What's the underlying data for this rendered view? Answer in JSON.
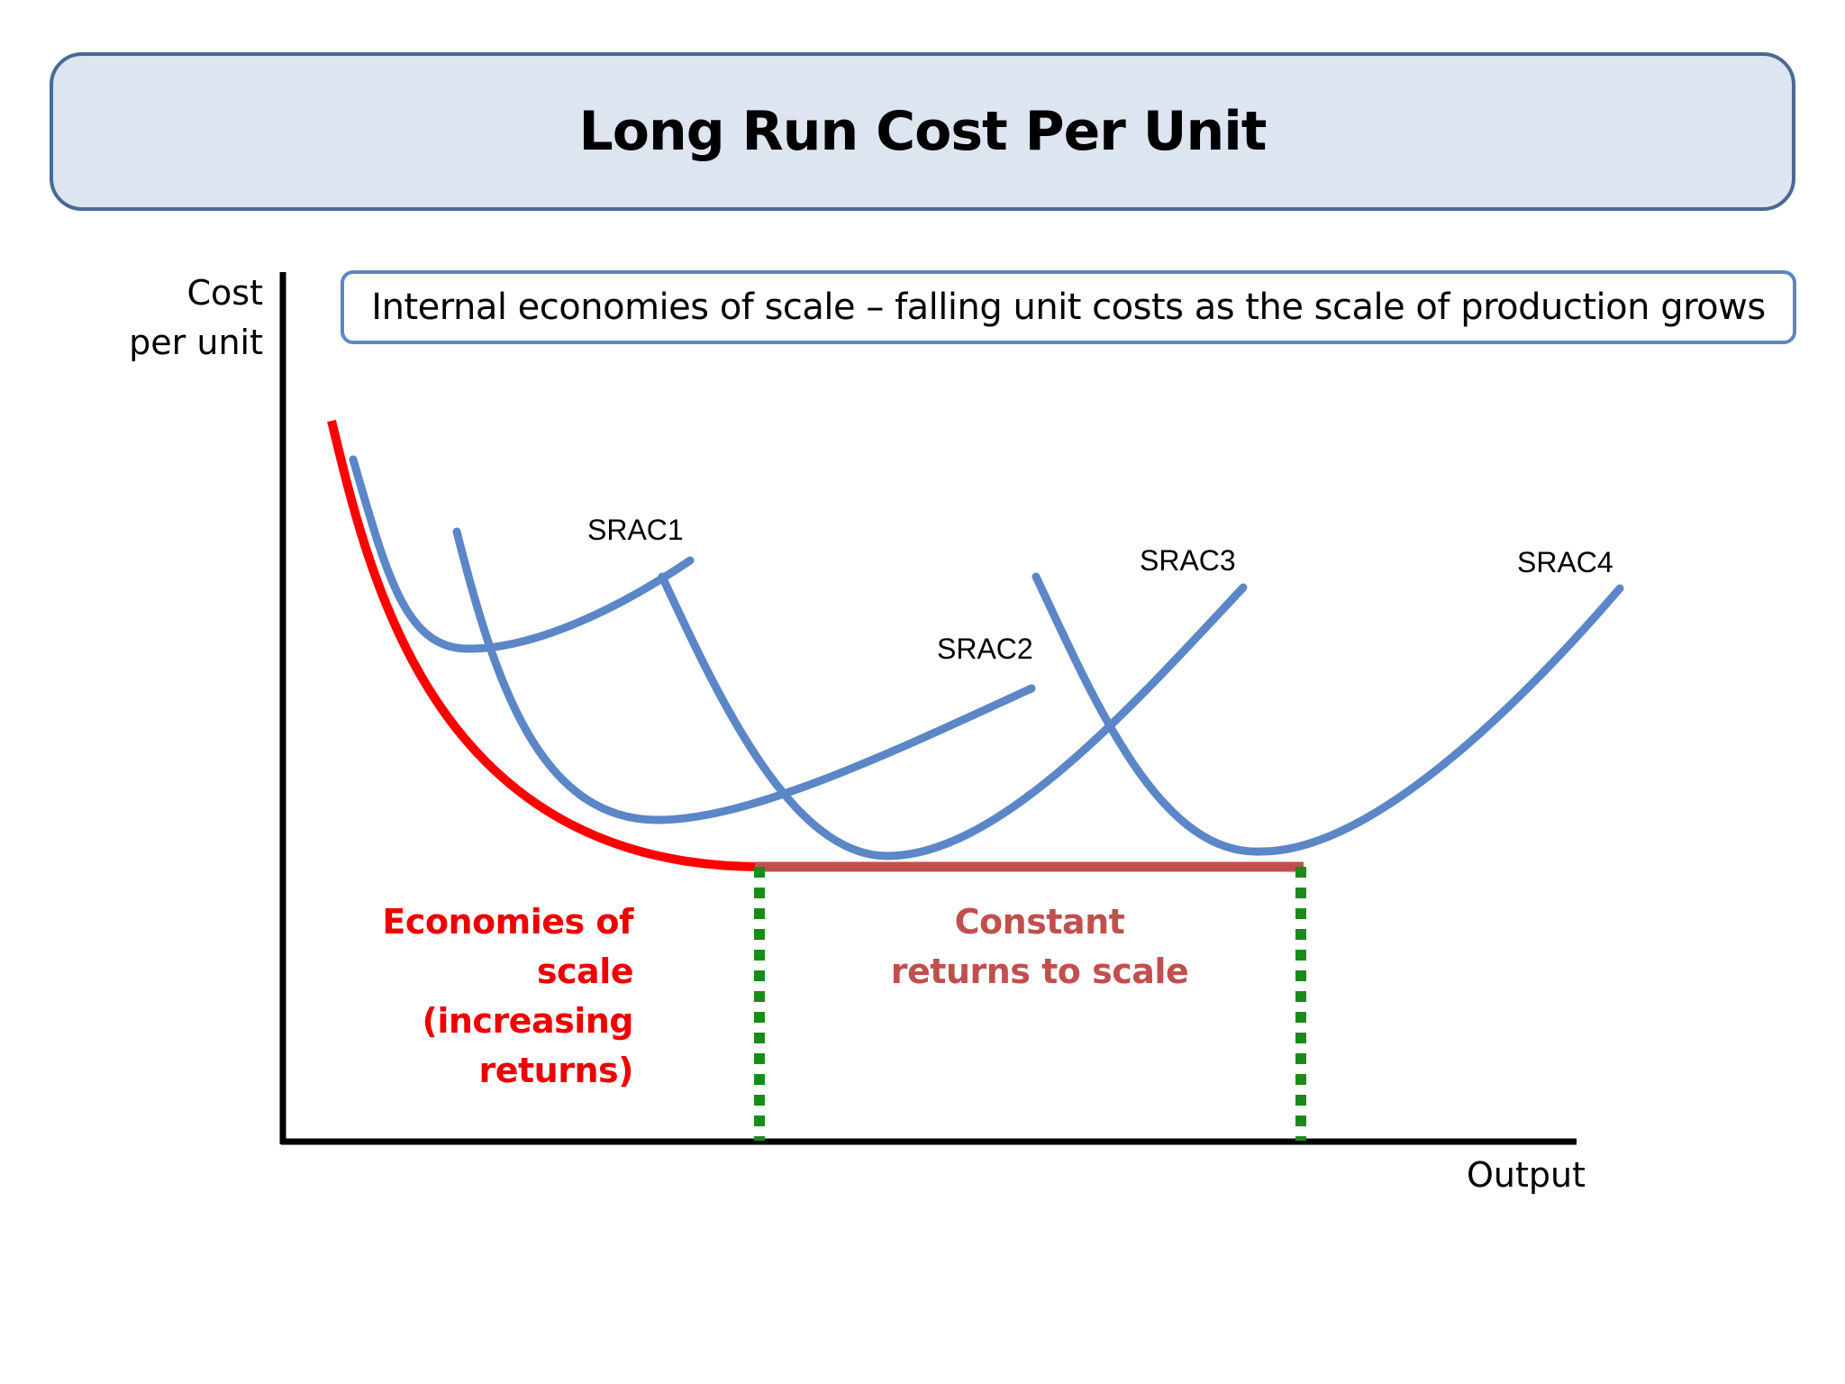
{
  "title": "Long Run Cost Per Unit",
  "subtitle": "Internal economies of scale – falling unit costs as the scale of production grows",
  "chart_data": {
    "type": "line",
    "ylabel": [
      "Cost",
      "per unit"
    ],
    "xlabel": "Output",
    "series": [
      {
        "name": "SRAC1",
        "color": "#5b86c7"
      },
      {
        "name": "SRAC2",
        "color": "#5b86c7"
      },
      {
        "name": "SRAC3",
        "color": "#5b86c7"
      },
      {
        "name": "SRAC4",
        "color": "#5b86c7"
      }
    ],
    "lrac_colors": {
      "economies_of_scale": "#ff0000",
      "constant_returns": "#c0504d"
    },
    "region_boundary_color": "#1a8a1a",
    "regions": {
      "economies_of_scale": [
        "Economies of",
        "scale",
        "(increasing",
        "returns)"
      ],
      "constant_returns": [
        "Constant",
        "returns to scale"
      ]
    }
  }
}
